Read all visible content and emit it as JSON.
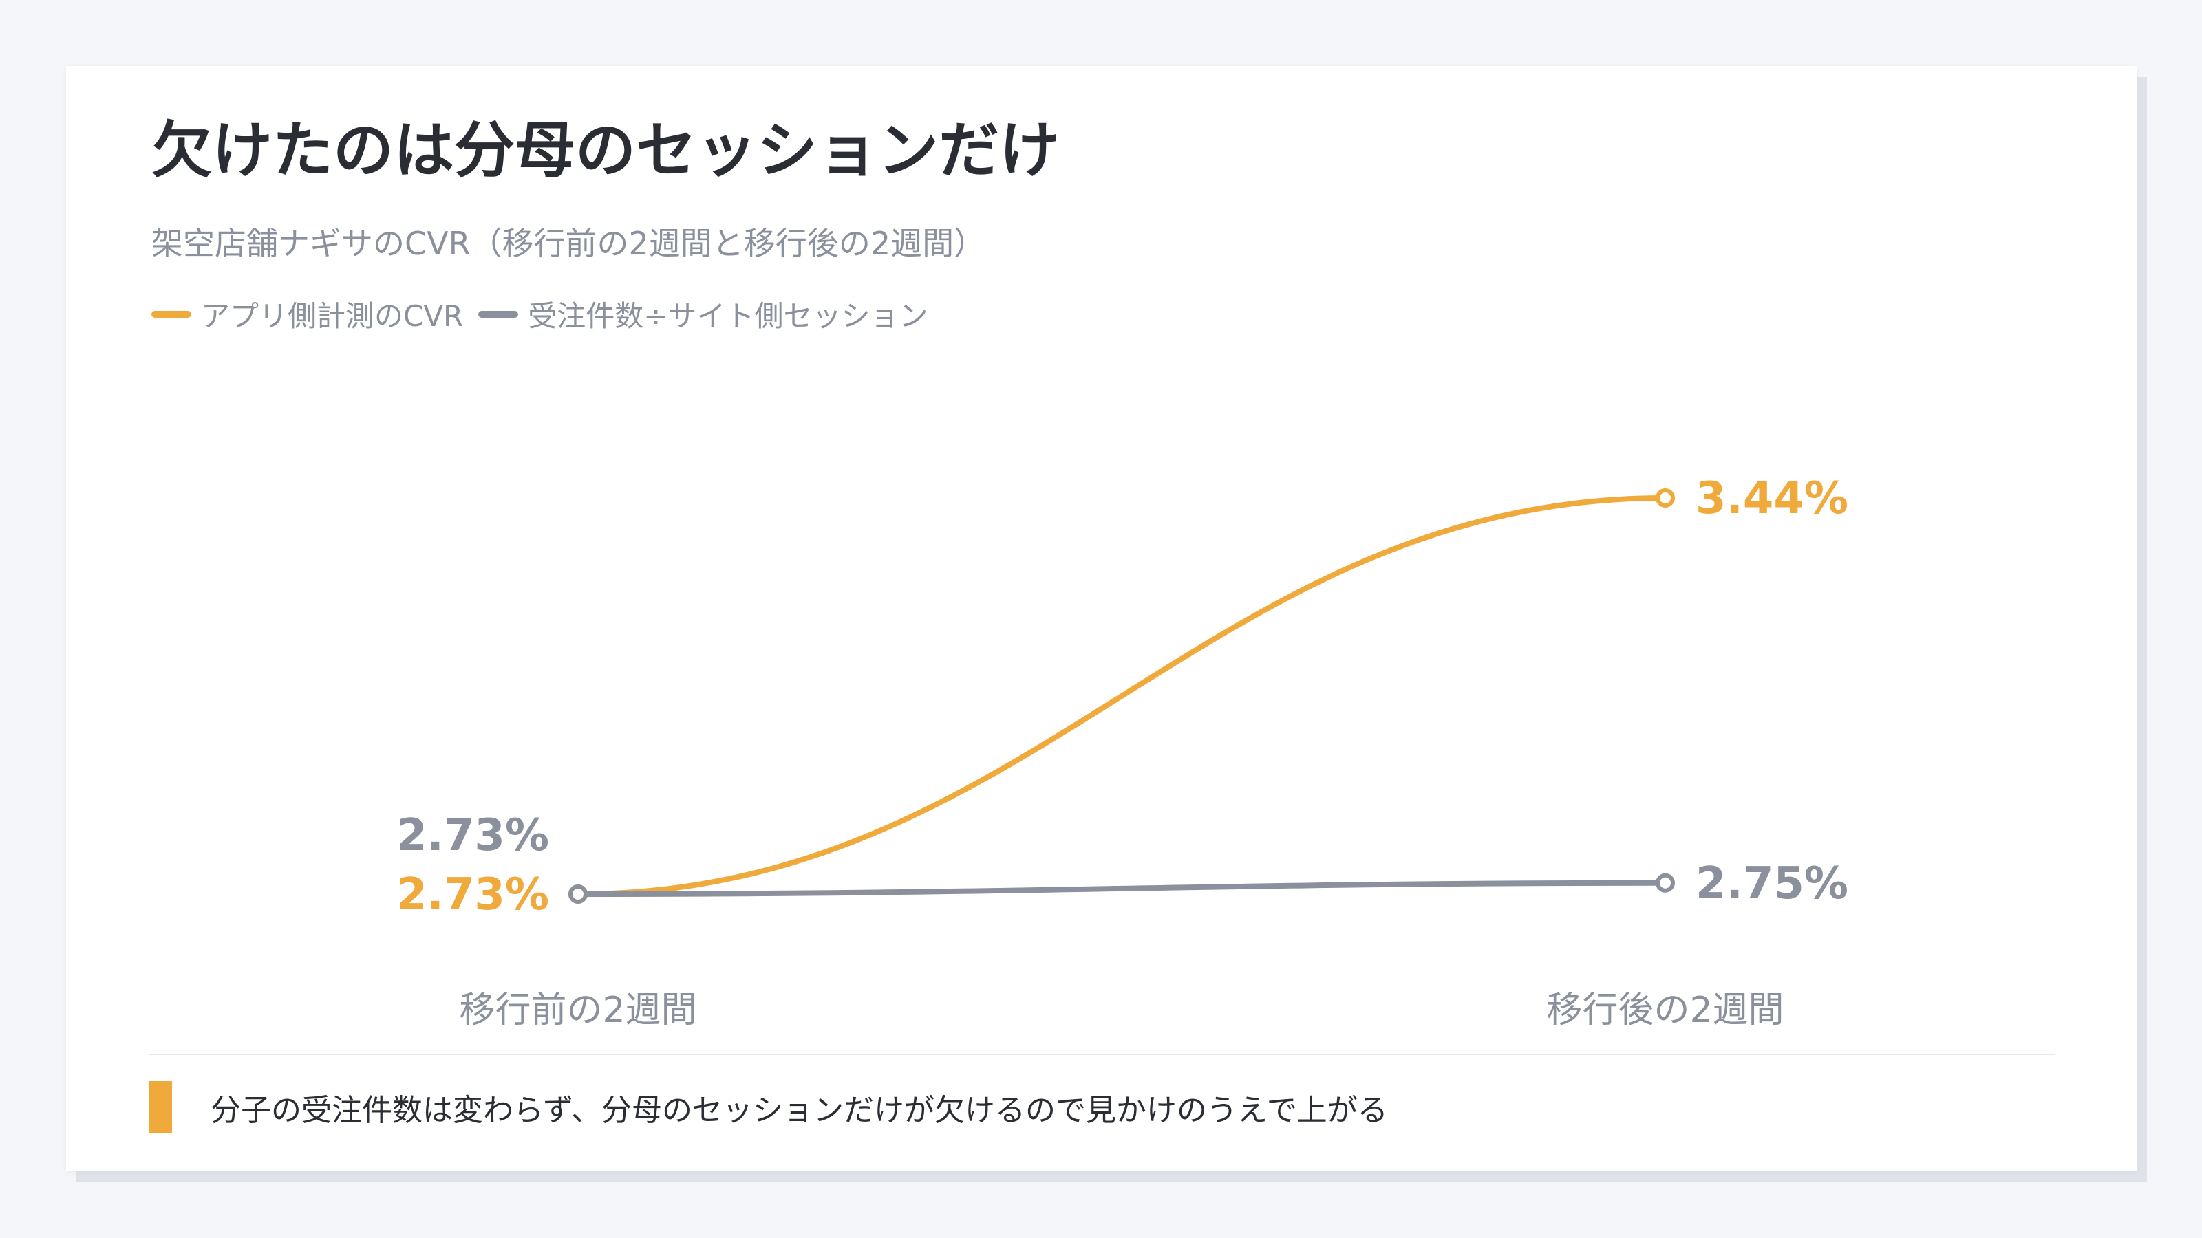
{
  "title": "欠けたのは分母のセッションだけ",
  "subtitle": "架空店舗ナギサのCVR（移行前の2週間と移行後の2週間）",
  "colors": {
    "accent": "#f0a93b",
    "neutral": "#8b919c",
    "text": "#2a2d34"
  },
  "chart_data": {
    "type": "line",
    "categories": [
      "移行前の2週間",
      "移行後の2週間"
    ],
    "series": [
      {
        "name": "アプリ側計測のCVR",
        "values": [
          2.73,
          3.44
        ],
        "labels": [
          "2.73%",
          "3.44%"
        ],
        "color": "#f0a93b"
      },
      {
        "name": "受注件数÷サイト側セッション",
        "values": [
          2.73,
          2.75
        ],
        "labels": [
          "2.73%",
          "2.75%"
        ],
        "color": "#8b919c"
      }
    ],
    "unit": "%",
    "ylim": [
      2.73,
      3.44
    ],
    "grid": false,
    "legend": "top-left"
  },
  "note": "分子の受注件数は変わらず、分母のセッションだけが欠けるので見かけのうえで上がる"
}
